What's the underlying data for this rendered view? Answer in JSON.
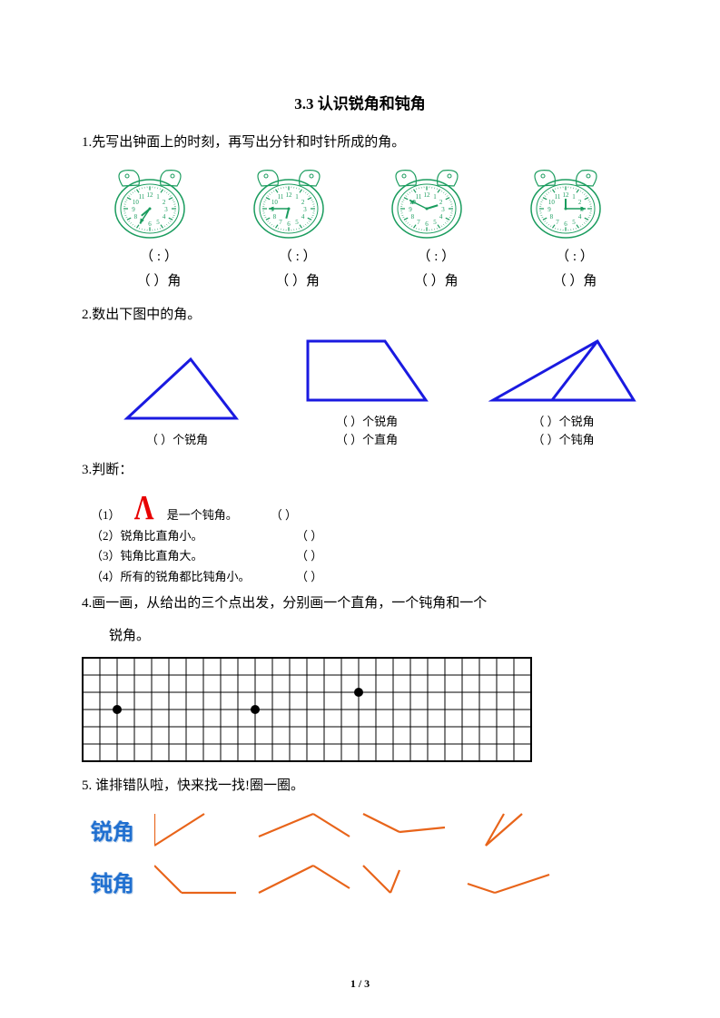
{
  "title": "3.3  认识锐角和钝角",
  "q1": {
    "prompt": "1.先写出钟面上的时刻，再写出分针和时针所成的角。",
    "timeBlank": "（    :    ）",
    "angleBlank": "（      ）角",
    "clocks": [
      {
        "hourAngle": 225,
        "minAngle": 210
      },
      {
        "hourAngle": 192,
        "minAngle": 270
      },
      {
        "hourAngle": 70,
        "minAngle": 300
      },
      {
        "hourAngle": 0,
        "minAngle": 90
      }
    ],
    "clockColor": "#1a9c5e"
  },
  "q2": {
    "prompt": "2.数出下图中的角。",
    "labels": {
      "acute": "（    ）个锐角",
      "right": "（    ）个直角",
      "obtuse": "（    ）个钝角"
    },
    "shapeColor": "#1a1ae0"
  },
  "q3": {
    "prompt": "3.判断：",
    "items": [
      "是一个钝角。",
      "（2）锐角比直角小。",
      "（3）钝角比直角大。",
      "（4）所有的锐角都比钝角小。"
    ],
    "blank": "（      ）"
  },
  "q4": {
    "prompt": "4.画一画，从给出的三个点出发，分别画一个直角，一个钝角和一个",
    "prompt2": "锐角。",
    "gridCols": 26,
    "gridRows": 6,
    "cellSize": 19,
    "dots": [
      {
        "col": 2,
        "row": 3
      },
      {
        "col": 10,
        "row": 3
      },
      {
        "col": 16,
        "row": 2
      }
    ]
  },
  "q5": {
    "prompt": "5.  谁排错队啦，快来找一找!圈一圈。",
    "labelAcute": "锐角",
    "labelObtuse": "钝角",
    "angleColor": "#e8641a",
    "acuteAngles": [
      {
        "rays": [
          [
            0,
            35,
            0,
            0
          ],
          [
            0,
            35,
            55,
            0
          ]
        ]
      },
      {
        "rays": [
          [
            0,
            25,
            60,
            0
          ],
          [
            60,
            0,
            100,
            25
          ]
        ]
      },
      {
        "rays": [
          [
            0,
            0,
            40,
            20
          ],
          [
            40,
            20,
            90,
            15
          ]
        ]
      },
      {
        "rays": [
          [
            60,
            0,
            20,
            35
          ],
          [
            20,
            35,
            40,
            0
          ]
        ]
      }
    ],
    "obtuseAngles": [
      {
        "rays": [
          [
            0,
            0,
            30,
            30
          ],
          [
            30,
            30,
            90,
            30
          ]
        ]
      },
      {
        "rays": [
          [
            0,
            30,
            60,
            0
          ],
          [
            60,
            0,
            100,
            25
          ]
        ]
      },
      {
        "rays": [
          [
            0,
            0,
            30,
            30
          ],
          [
            30,
            30,
            40,
            5
          ]
        ]
      },
      {
        "rays": [
          [
            0,
            20,
            30,
            30
          ],
          [
            30,
            30,
            90,
            10
          ]
        ]
      }
    ]
  },
  "pageNum": "1 / 3"
}
